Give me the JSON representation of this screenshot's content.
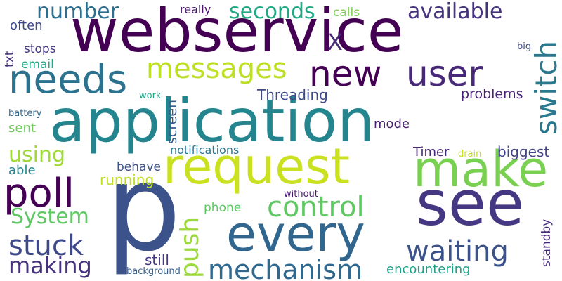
{
  "words": [
    {
      "text": "webservice",
      "color": "#440154"
    },
    {
      "text": "application",
      "color": "#25858e"
    },
    {
      "text": "request",
      "color": "#cae11f"
    },
    {
      "text": "p",
      "color": "#3b528b"
    },
    {
      "text": "make",
      "color": "#7ad151"
    },
    {
      "text": "see",
      "color": "#453781"
    },
    {
      "text": "every",
      "color": "#31668e"
    },
    {
      "text": "new",
      "color": "#440154"
    },
    {
      "text": "user",
      "color": "#482878"
    },
    {
      "text": "needs",
      "color": "#2c728e"
    },
    {
      "text": "messages",
      "color": "#bddf26"
    },
    {
      "text": "poll",
      "color": "#440154"
    },
    {
      "text": "switch",
      "color": "#2a788e"
    },
    {
      "text": "push",
      "color": "#9bd93c"
    },
    {
      "text": "control",
      "color": "#5ec962"
    },
    {
      "text": "waiting",
      "color": "#3b528b"
    },
    {
      "text": "mechanism",
      "color": "#31688e"
    },
    {
      "text": "stuck",
      "color": "#3e4989"
    },
    {
      "text": "making",
      "color": "#46327e"
    },
    {
      "text": "available",
      "color": "#46337e"
    },
    {
      "text": "seconds",
      "color": "#22a884"
    },
    {
      "text": "number",
      "color": "#2e6e8e"
    },
    {
      "text": "System",
      "color": "#5ec962"
    },
    {
      "text": "using",
      "color": "#a0da39"
    },
    {
      "text": "X",
      "color": "#472c7a"
    },
    {
      "text": "Threading",
      "color": "#3e4a89"
    },
    {
      "text": "problems",
      "color": "#482475"
    },
    {
      "text": "screen",
      "color": "#365c8d"
    },
    {
      "text": "notifications",
      "color": "#2a788e"
    },
    {
      "text": "Timer",
      "color": "#482878"
    },
    {
      "text": "drain",
      "color": "#c8e020"
    },
    {
      "text": "biggest",
      "color": "#414487"
    },
    {
      "text": "mode",
      "color": "#481f70"
    },
    {
      "text": "behave",
      "color": "#3b528b"
    },
    {
      "text": "running",
      "color": "#bddf26"
    },
    {
      "text": "able",
      "color": "#25858e"
    },
    {
      "text": "sent",
      "color": "#6ece58"
    },
    {
      "text": "battery",
      "color": "#31688e"
    },
    {
      "text": "email",
      "color": "#22a884"
    },
    {
      "text": "stops",
      "color": "#443a83"
    },
    {
      "text": "often",
      "color": "#3e4989"
    },
    {
      "text": "txt",
      "color": "#46327e"
    },
    {
      "text": "really",
      "color": "#481668"
    },
    {
      "text": "calls",
      "color": "#7ad151"
    },
    {
      "text": "work",
      "color": "#20a386"
    },
    {
      "text": "big",
      "color": "#3e4a89"
    },
    {
      "text": "without",
      "color": "#481a6c"
    },
    {
      "text": "phone",
      "color": "#5ec962"
    },
    {
      "text": "standby",
      "color": "#472d7b"
    },
    {
      "text": "still",
      "color": "#443983"
    },
    {
      "text": "background",
      "color": "#355f8d"
    },
    {
      "text": "encountering",
      "color": "#1fa088"
    }
  ]
}
